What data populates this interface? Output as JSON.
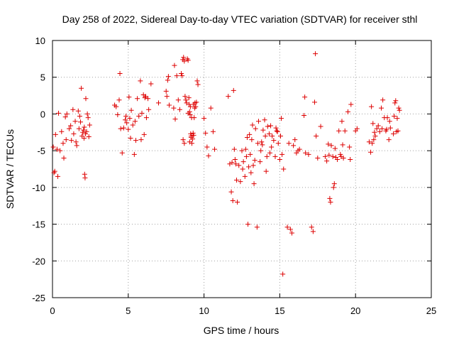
{
  "chart_data": {
    "type": "scatter",
    "title": "Day 258 of 2022, Sidereal Day-to-day VTEC variation (SDTVAR) for receiver sthl",
    "xlabel": "GPS time / hours",
    "ylabel": "SDTVAR / TECUs",
    "xlim": [
      0,
      25
    ],
    "ylim": [
      -25,
      10
    ],
    "xticks": [
      0,
      5,
      10,
      15,
      20,
      25
    ],
    "yticks": [
      -25,
      -20,
      -15,
      -10,
      -5,
      0,
      5,
      10
    ],
    "grid": true,
    "marker": "+",
    "color": "#dd0000",
    "series": [
      {
        "name": "sthl",
        "points": [
          [
            0.05,
            -4.5
          ],
          [
            0.1,
            -8.0
          ],
          [
            0.15,
            -7.8
          ],
          [
            0.2,
            -2.8
          ],
          [
            0.3,
            -4.8
          ],
          [
            0.35,
            -8.5
          ],
          [
            0.4,
            0.1
          ],
          [
            0.5,
            -5.0
          ],
          [
            0.6,
            -2.4
          ],
          [
            0.7,
            -4.0
          ],
          [
            0.75,
            -6.0
          ],
          [
            0.85,
            -0.4
          ],
          [
            0.9,
            -3.5
          ],
          [
            0.95,
            0.0
          ],
          [
            1.1,
            -2.0
          ],
          [
            1.2,
            -1.6
          ],
          [
            1.25,
            -3.6
          ],
          [
            1.35,
            0.6
          ],
          [
            1.4,
            -2.7
          ],
          [
            1.5,
            -1.0
          ],
          [
            1.55,
            -3.8
          ],
          [
            1.6,
            -4.3
          ],
          [
            1.7,
            0.4
          ],
          [
            1.75,
            -2.0
          ],
          [
            1.8,
            -0.3
          ],
          [
            1.85,
            -1.1
          ],
          [
            1.9,
            3.5
          ],
          [
            1.95,
            -3.0
          ],
          [
            2.0,
            -2.5
          ],
          [
            2.05,
            -2.2
          ],
          [
            2.08,
            -3.3
          ],
          [
            2.1,
            -1.8
          ],
          [
            2.12,
            -8.2
          ],
          [
            2.15,
            -8.7
          ],
          [
            2.18,
            -2.7
          ],
          [
            2.2,
            2.1
          ],
          [
            2.25,
            -2.4
          ],
          [
            2.3,
            0.0
          ],
          [
            2.35,
            -0.5
          ],
          [
            2.4,
            -3.1
          ],
          [
            2.45,
            -1.5
          ],
          [
            4.1,
            1.2
          ],
          [
            4.2,
            1.0
          ],
          [
            4.3,
            -0.1
          ],
          [
            4.4,
            1.9
          ],
          [
            4.45,
            5.5
          ],
          [
            4.5,
            -2.0
          ],
          [
            4.6,
            -5.3
          ],
          [
            4.7,
            -1.9
          ],
          [
            4.8,
            -0.8
          ],
          [
            4.85,
            -0.3
          ],
          [
            4.9,
            -1.2
          ],
          [
            5.0,
            -2.1
          ],
          [
            5.05,
            2.3
          ],
          [
            5.1,
            -0.6
          ],
          [
            5.15,
            -3.3
          ],
          [
            5.2,
            0.5
          ],
          [
            5.3,
            -1.5
          ],
          [
            5.4,
            -5.5
          ],
          [
            5.45,
            -1.0
          ],
          [
            5.5,
            -3.6
          ],
          [
            5.6,
            2.1
          ],
          [
            5.7,
            -0.3
          ],
          [
            5.8,
            4.5
          ],
          [
            5.85,
            -3.5
          ],
          [
            5.9,
            0.1
          ],
          [
            6.0,
            2.6
          ],
          [
            6.05,
            -2.8
          ],
          [
            6.1,
            2.2
          ],
          [
            6.15,
            2.4
          ],
          [
            6.2,
            -0.5
          ],
          [
            6.3,
            2.1
          ],
          [
            6.35,
            0.6
          ],
          [
            6.5,
            4.1
          ],
          [
            7.0,
            1.5
          ],
          [
            7.5,
            3.1
          ],
          [
            7.55,
            2.4
          ],
          [
            7.6,
            4.6
          ],
          [
            7.65,
            5.1
          ],
          [
            7.7,
            1.2
          ],
          [
            8.0,
            0.8
          ],
          [
            8.05,
            6.6
          ],
          [
            8.1,
            -0.7
          ],
          [
            8.2,
            5.2
          ],
          [
            8.3,
            1.9
          ],
          [
            8.4,
            0.6
          ],
          [
            8.5,
            5.5
          ],
          [
            8.55,
            5.2
          ],
          [
            8.6,
            7.4
          ],
          [
            8.65,
            7.7
          ],
          [
            8.7,
            7.2
          ],
          [
            8.75,
            2.4
          ],
          [
            8.8,
            1.9
          ],
          [
            8.85,
            1.5
          ],
          [
            8.9,
            7.5
          ],
          [
            8.95,
            7.3
          ],
          [
            9.0,
            2.2
          ],
          [
            9.02,
            1.3
          ],
          [
            9.05,
            0.3
          ],
          [
            9.08,
            -0.1
          ],
          [
            9.1,
            1.0
          ],
          [
            9.12,
            -2.7
          ],
          [
            9.15,
            -3.0
          ],
          [
            9.18,
            -0.5
          ],
          [
            9.2,
            -4.0
          ],
          [
            9.25,
            -3.4
          ],
          [
            9.28,
            -2.6
          ],
          [
            9.3,
            1.3
          ],
          [
            9.32,
            -2.9
          ],
          [
            9.35,
            -0.5
          ],
          [
            9.38,
            0.8
          ],
          [
            9.4,
            1.5
          ],
          [
            9.45,
            1.0
          ],
          [
            9.5,
            1.6
          ],
          [
            9.55,
            4.5
          ],
          [
            9.6,
            4.0
          ],
          [
            8.62,
            -3.5
          ],
          [
            8.7,
            -4.0
          ],
          [
            8.95,
            0.1
          ],
          [
            9.05,
            -3.8
          ],
          [
            9.15,
            -3.2
          ],
          [
            10.0,
            -0.6
          ],
          [
            10.1,
            -2.6
          ],
          [
            10.2,
            -4.5
          ],
          [
            10.3,
            -5.7
          ],
          [
            10.45,
            0.8
          ],
          [
            10.6,
            -2.4
          ],
          [
            10.7,
            -4.8
          ],
          [
            11.6,
            2.4
          ],
          [
            11.7,
            -6.8
          ],
          [
            11.8,
            -10.6
          ],
          [
            11.85,
            -6.6
          ],
          [
            11.9,
            -11.8
          ],
          [
            11.95,
            3.2
          ],
          [
            12.0,
            -4.8
          ],
          [
            12.05,
            -6.2
          ],
          [
            12.1,
            -6.8
          ],
          [
            12.15,
            -9.0
          ],
          [
            12.2,
            -12.0
          ],
          [
            12.3,
            -7.0
          ],
          [
            12.4,
            -9.2
          ],
          [
            12.5,
            -5.0
          ],
          [
            12.55,
            -7.5
          ],
          [
            12.6,
            -6.5
          ],
          [
            12.7,
            -8.5
          ],
          [
            12.75,
            -4.8
          ],
          [
            12.8,
            -5.8
          ],
          [
            12.85,
            -3.2
          ],
          [
            12.9,
            -15.0
          ],
          [
            12.95,
            -7.2
          ],
          [
            13.0,
            -2.8
          ],
          [
            13.05,
            -5.5
          ],
          [
            13.1,
            -8.0
          ],
          [
            13.15,
            -3.5
          ],
          [
            13.2,
            -1.5
          ],
          [
            13.25,
            -7.0
          ],
          [
            13.3,
            -9.5
          ],
          [
            13.35,
            -6.3
          ],
          [
            13.4,
            -2.0
          ],
          [
            13.5,
            -15.4
          ],
          [
            13.55,
            -4.0
          ],
          [
            13.6,
            -1.0
          ],
          [
            13.7,
            -6.5
          ],
          [
            13.75,
            -5.0
          ],
          [
            13.8,
            -3.8
          ],
          [
            13.85,
            -4.2
          ],
          [
            13.9,
            -2.2
          ],
          [
            14.0,
            -0.8
          ],
          [
            14.05,
            -3.0
          ],
          [
            14.1,
            -7.8
          ],
          [
            14.15,
            -5.8
          ],
          [
            14.2,
            -1.7
          ],
          [
            14.3,
            -2.7
          ],
          [
            14.35,
            -5.3
          ],
          [
            14.4,
            -1.6
          ],
          [
            14.45,
            -4.5
          ],
          [
            14.5,
            -3.0
          ],
          [
            14.6,
            -3.6
          ],
          [
            14.7,
            -5.8
          ],
          [
            14.75,
            -1.9
          ],
          [
            14.8,
            -2.3
          ],
          [
            14.85,
            -2.4
          ],
          [
            14.9,
            -4.0
          ],
          [
            15.0,
            -6.2
          ],
          [
            15.05,
            -3.0
          ],
          [
            15.1,
            -0.6
          ],
          [
            15.15,
            -5.5
          ],
          [
            15.2,
            -21.8
          ],
          [
            15.25,
            -7.5
          ],
          [
            15.5,
            -15.4
          ],
          [
            15.6,
            -4.0
          ],
          [
            15.7,
            -15.7
          ],
          [
            15.8,
            -16.2
          ],
          [
            15.9,
            -4.3
          ],
          [
            16.0,
            -3.5
          ],
          [
            16.1,
            -5.3
          ],
          [
            16.2,
            -5.0
          ],
          [
            16.3,
            -4.8
          ],
          [
            16.6,
            -0.2
          ],
          [
            16.65,
            2.3
          ],
          [
            16.7,
            -5.3
          ],
          [
            16.9,
            -5.5
          ],
          [
            17.1,
            -15.4
          ],
          [
            17.2,
            -16.0
          ],
          [
            17.3,
            1.6
          ],
          [
            17.35,
            8.2
          ],
          [
            17.4,
            -3.0
          ],
          [
            17.5,
            -6.0
          ],
          [
            17.7,
            -1.7
          ],
          [
            18.0,
            -5.8
          ],
          [
            18.1,
            -6.4
          ],
          [
            18.2,
            -4.1
          ],
          [
            18.25,
            -5.6
          ],
          [
            18.3,
            -11.5
          ],
          [
            18.35,
            -12.0
          ],
          [
            18.4,
            -4.3
          ],
          [
            18.5,
            -5.8
          ],
          [
            18.55,
            -10.0
          ],
          [
            18.6,
            -9.5
          ],
          [
            18.65,
            -4.7
          ],
          [
            18.7,
            -5.9
          ],
          [
            18.8,
            -6.2
          ],
          [
            18.9,
            -2.3
          ],
          [
            19.0,
            -5.5
          ],
          [
            19.05,
            -5.8
          ],
          [
            19.1,
            -1.0
          ],
          [
            19.15,
            -4.2
          ],
          [
            19.2,
            -6.0
          ],
          [
            19.3,
            -2.3
          ],
          [
            19.5,
            0.3
          ],
          [
            19.6,
            -4.5
          ],
          [
            19.65,
            -6.2
          ],
          [
            19.7,
            1.3
          ],
          [
            20.0,
            -2.3
          ],
          [
            20.1,
            -2.0
          ],
          [
            20.9,
            -3.8
          ],
          [
            21.0,
            -5.2
          ],
          [
            21.05,
            1.0
          ],
          [
            21.1,
            -4.0
          ],
          [
            21.15,
            -1.3
          ],
          [
            21.2,
            -3.5
          ],
          [
            21.25,
            -2.5
          ],
          [
            21.3,
            -3.0
          ],
          [
            21.4,
            -2.0
          ],
          [
            21.5,
            -1.6
          ],
          [
            21.6,
            -2.4
          ],
          [
            21.7,
            0.8
          ],
          [
            21.75,
            -2.0
          ],
          [
            21.8,
            1.9
          ],
          [
            21.9,
            -0.5
          ],
          [
            22.0,
            -2.3
          ],
          [
            22.05,
            -2.1
          ],
          [
            22.1,
            -0.5
          ],
          [
            22.2,
            -3.5
          ],
          [
            22.25,
            -1.0
          ],
          [
            22.3,
            -1.9
          ],
          [
            22.5,
            -2.7
          ],
          [
            22.55,
            -0.3
          ],
          [
            22.6,
            1.5
          ],
          [
            22.65,
            1.8
          ],
          [
            22.7,
            -2.4
          ],
          [
            22.75,
            -0.6
          ],
          [
            22.8,
            -2.3
          ],
          [
            22.85,
            0.8
          ],
          [
            22.9,
            0.5
          ]
        ]
      }
    ]
  }
}
